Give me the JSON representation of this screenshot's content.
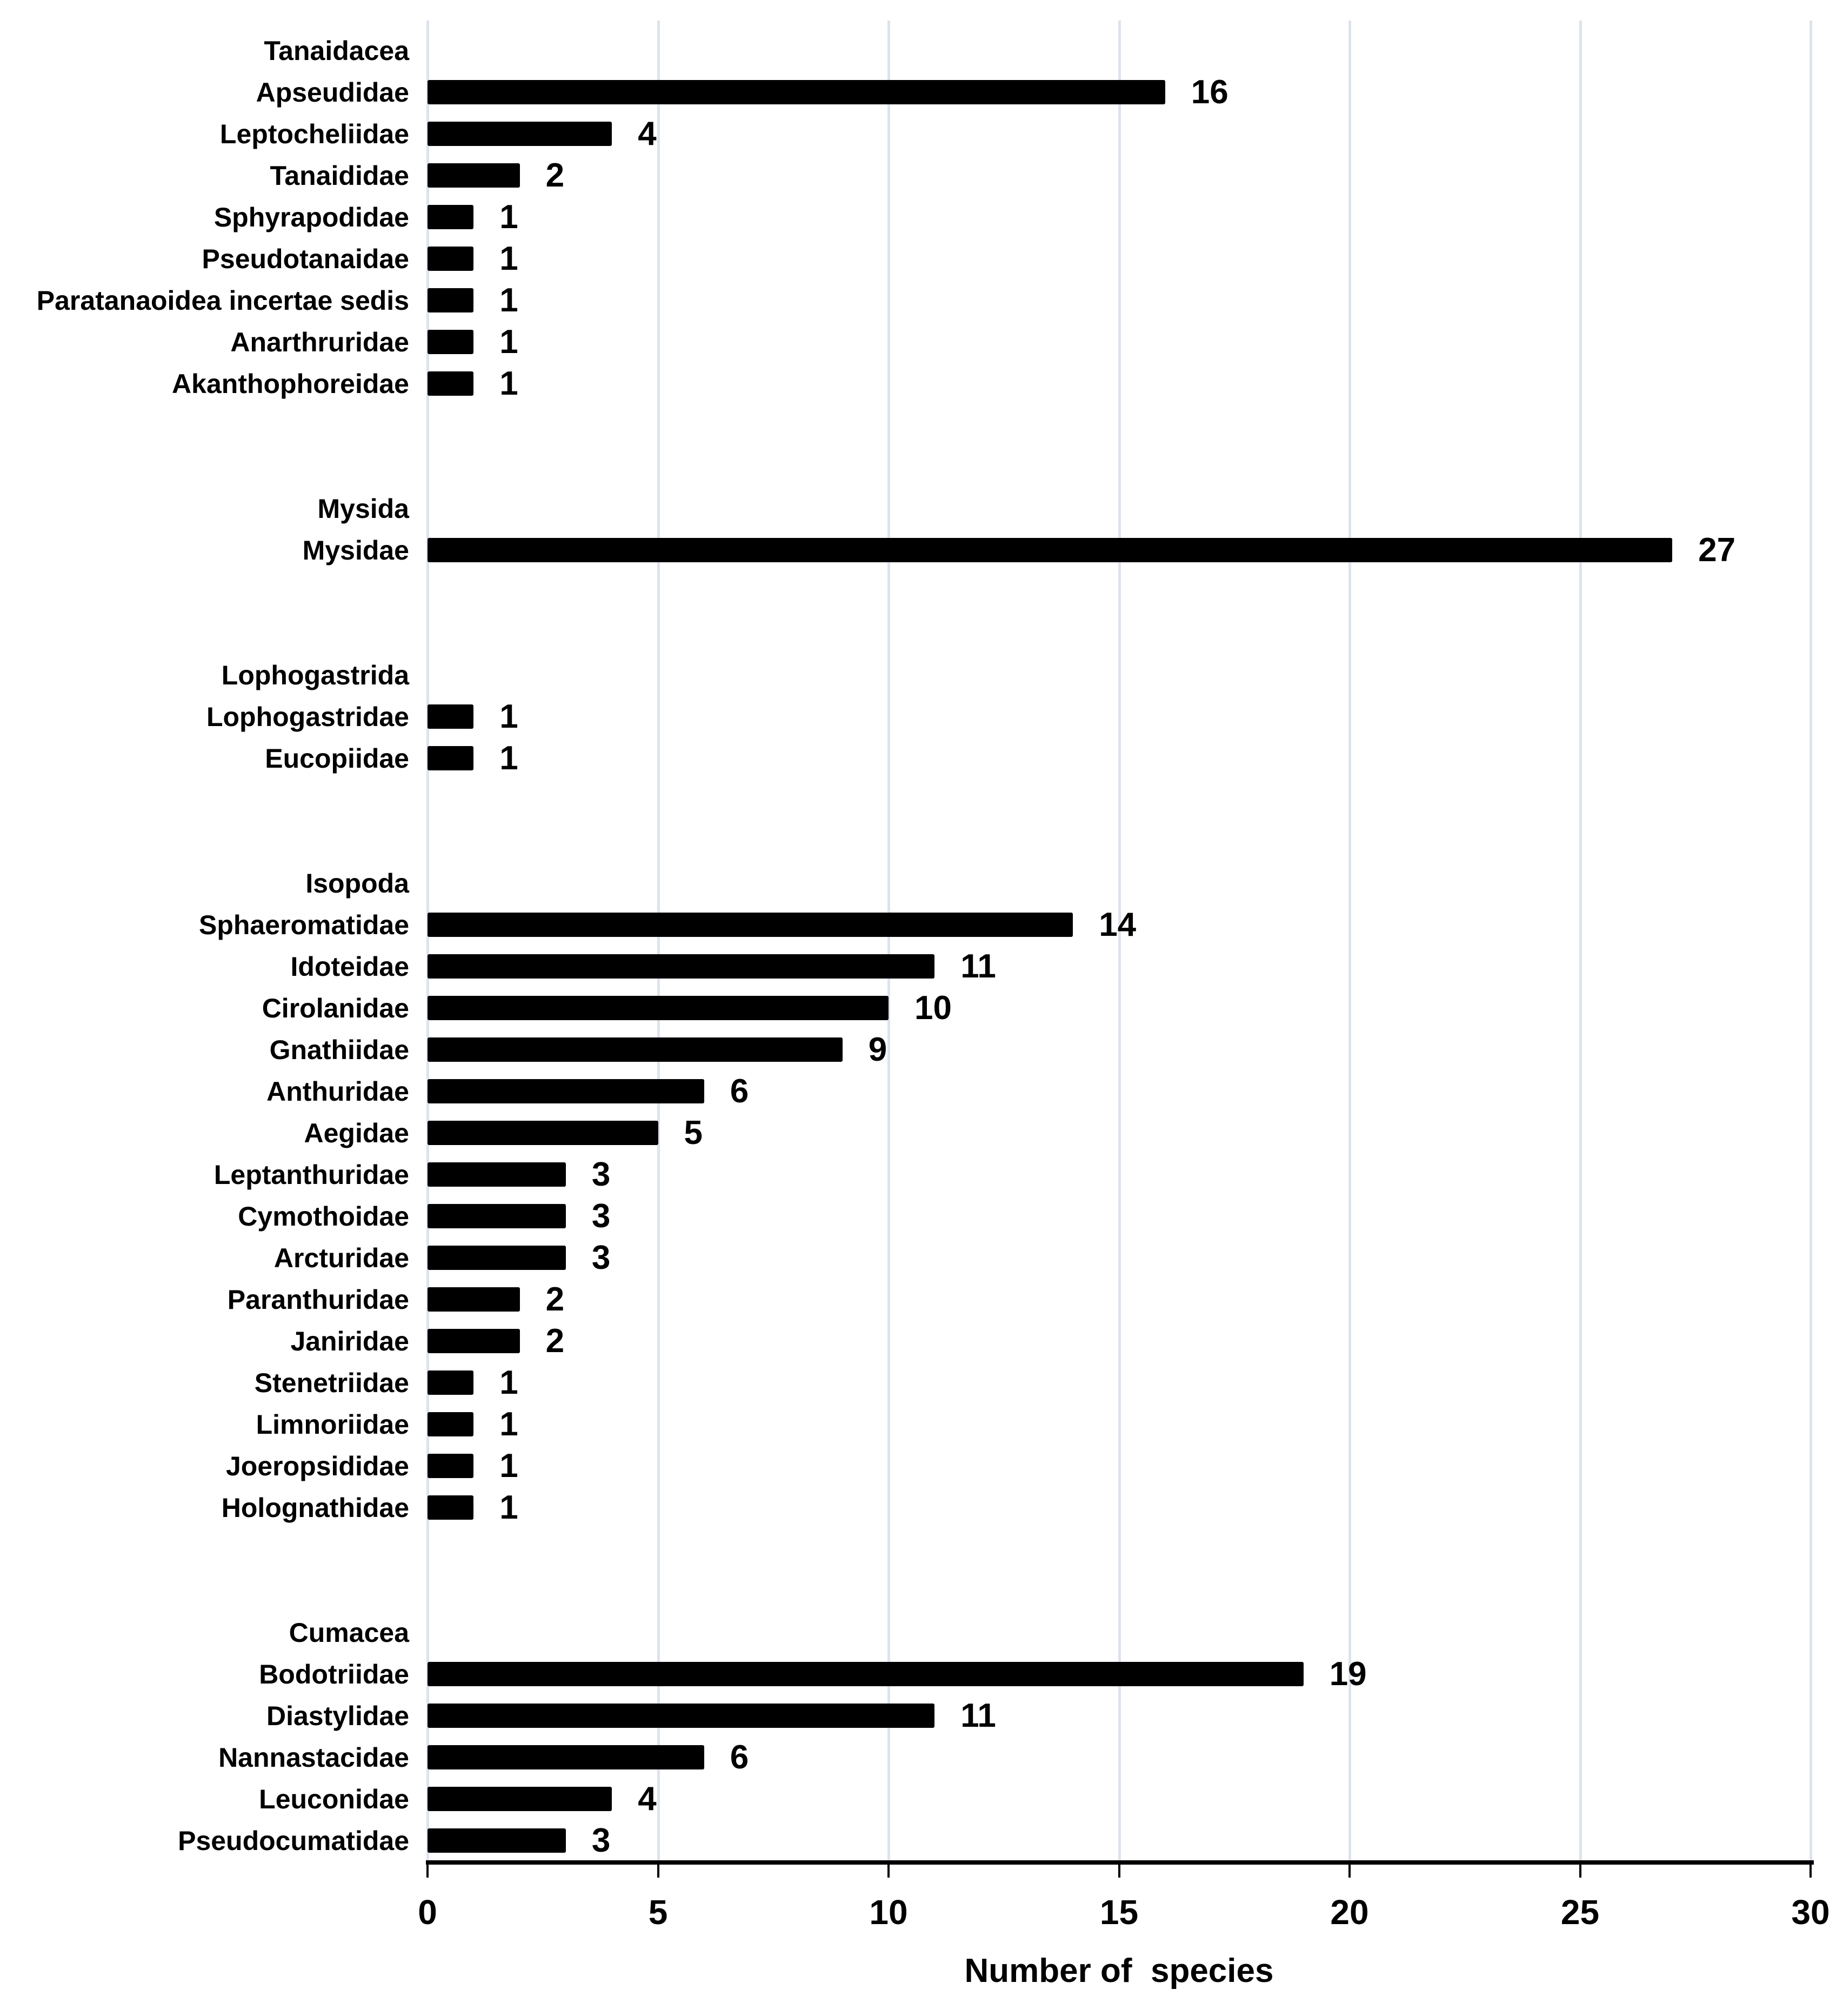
{
  "chart_data": {
    "type": "bar",
    "orientation": "horizontal",
    "title": "",
    "xlabel": "Number of  species",
    "ylabel": "",
    "xlim": [
      0,
      30
    ],
    "xticks": [
      "0",
      "5",
      "10",
      "15",
      "20",
      "25",
      "30"
    ],
    "grid": "vertical",
    "legend": "none",
    "groups": [
      {
        "order": "Tanaidacea",
        "families": [
          {
            "name": "Apseudidae",
            "value": 16
          },
          {
            "name": "Leptocheliidae",
            "value": 4
          },
          {
            "name": "Tanaididae",
            "value": 2
          },
          {
            "name": "Sphyrapodidae",
            "value": 1
          },
          {
            "name": "Pseudotanaidae",
            "value": 1
          },
          {
            "name": "Paratanaoidea incertae sedis",
            "value": 1
          },
          {
            "name": "Anarthruridae",
            "value": 1
          },
          {
            "name": "Akanthophoreidae",
            "value": 1
          }
        ]
      },
      {
        "order": "Mysida",
        "families": [
          {
            "name": "Mysidae",
            "value": 27
          }
        ]
      },
      {
        "order": "Lophogastrida",
        "families": [
          {
            "name": "Lophogastridae",
            "value": 1
          },
          {
            "name": "Eucopiidae",
            "value": 1
          }
        ]
      },
      {
        "order": "Isopoda",
        "families": [
          {
            "name": "Sphaeromatidae",
            "value": 14
          },
          {
            "name": "Idoteidae",
            "value": 11
          },
          {
            "name": "Cirolanidae",
            "value": 10
          },
          {
            "name": "Gnathiidae",
            "value": 9
          },
          {
            "name": "Anthuridae",
            "value": 6
          },
          {
            "name": "Aegidae",
            "value": 5
          },
          {
            "name": "Leptanthuridae",
            "value": 3
          },
          {
            "name": "Cymothoidae",
            "value": 3
          },
          {
            "name": "Arcturidae",
            "value": 3
          },
          {
            "name": "Paranthuridae",
            "value": 2
          },
          {
            "name": "Janiridae",
            "value": 2
          },
          {
            "name": "Stenetriidae",
            "value": 1
          },
          {
            "name": "Limnoriidae",
            "value": 1
          },
          {
            "name": "Joeropsididae",
            "value": 1
          },
          {
            "name": "Holognathidae",
            "value": 1
          }
        ]
      },
      {
        "order": "Cumacea",
        "families": [
          {
            "name": "Bodotriidae",
            "value": 19
          },
          {
            "name": "Diastylidae",
            "value": 11
          },
          {
            "name": "Nannastacidae",
            "value": 6
          },
          {
            "name": "Leuconidae",
            "value": 4
          },
          {
            "name": "Pseudocumatidae",
            "value": 3
          }
        ]
      }
    ]
  },
  "colors": {
    "bar": "#000000",
    "gridline": "#dde3ed",
    "axis_line": "#000000",
    "text": "#000000"
  }
}
